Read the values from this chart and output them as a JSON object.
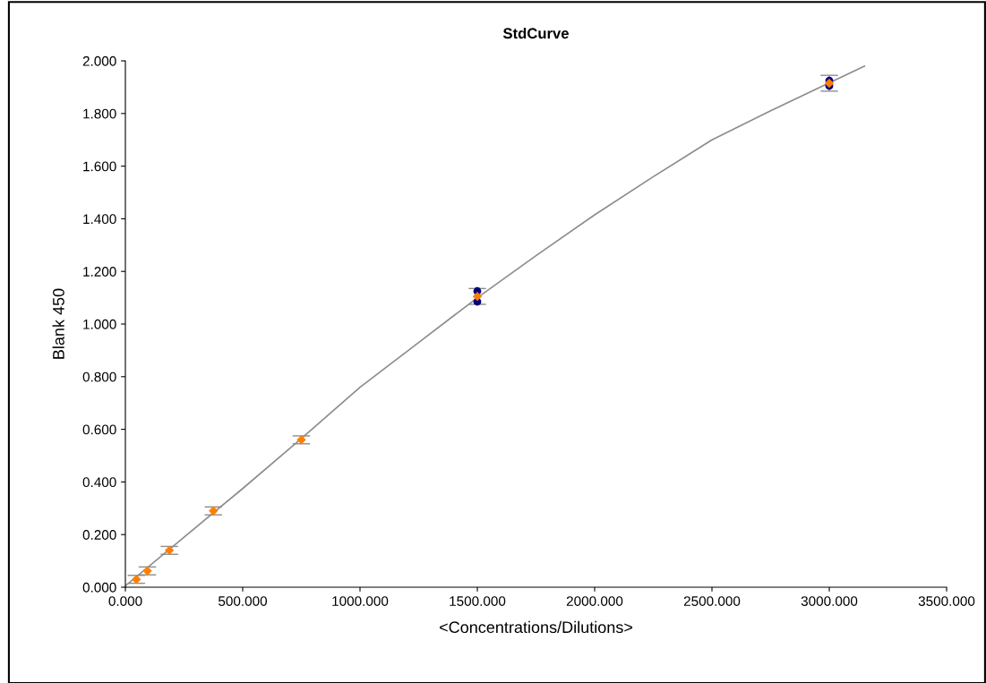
{
  "chart_data": {
    "type": "scatter",
    "title": "StdCurve",
    "xlabel": "<Concentrations/Dilutions>",
    "ylabel": "Blank 450",
    "xlim": [
      0,
      3500
    ],
    "ylim": [
      0,
      2
    ],
    "xticks": [
      {
        "value": 0,
        "label": "0.000"
      },
      {
        "value": 500,
        "label": "500.000"
      },
      {
        "value": 1000,
        "label": "1000.000"
      },
      {
        "value": 1500,
        "label": "1500.000"
      },
      {
        "value": 2000,
        "label": "2000.000"
      },
      {
        "value": 2500,
        "label": "2500.000"
      },
      {
        "value": 3000,
        "label": "3000.000"
      },
      {
        "value": 3500,
        "label": "3500.000"
      }
    ],
    "yticks": [
      {
        "value": 0,
        "label": "0.000"
      },
      {
        "value": 0.2,
        "label": "0.200"
      },
      {
        "value": 0.4,
        "label": "0.400"
      },
      {
        "value": 0.6,
        "label": "0.600"
      },
      {
        "value": 0.8,
        "label": "0.800"
      },
      {
        "value": 1.0,
        "label": "1.000"
      },
      {
        "value": 1.2,
        "label": "1.200"
      },
      {
        "value": 1.4,
        "label": "1.400"
      },
      {
        "value": 1.6,
        "label": "1.600"
      },
      {
        "value": 1.8,
        "label": "1.800"
      },
      {
        "value": 2.0,
        "label": "2.000"
      }
    ],
    "grid": false,
    "series": [
      {
        "type": "line",
        "color": "#8c8c8c",
        "marker": "none",
        "x": [
          0,
          250,
          500,
          750,
          1000,
          1250,
          1500,
          1750,
          2000,
          2250,
          2500,
          2750,
          3150
        ],
        "values": [
          0.005,
          0.19,
          0.375,
          0.565,
          0.76,
          0.93,
          1.1,
          1.26,
          1.415,
          1.56,
          1.7,
          1.81,
          1.98
        ]
      },
      {
        "type": "scatter",
        "color": "#000080",
        "marker": "circle",
        "x": [
          1500,
          1500,
          3000,
          3000
        ],
        "values": [
          1.125,
          1.085,
          1.925,
          1.905
        ]
      },
      {
        "color": "#ff8000",
        "marker": "diamond",
        "x": [
          46.875,
          93.75,
          187.5,
          375,
          750,
          1500,
          3000
        ],
        "values": [
          0.03,
          0.062,
          0.14,
          0.29,
          0.56,
          1.105,
          1.915
        ],
        "errors": [
          0.015,
          0.015,
          0.015,
          0.015,
          0.015,
          0.03,
          0.03
        ]
      }
    ]
  }
}
